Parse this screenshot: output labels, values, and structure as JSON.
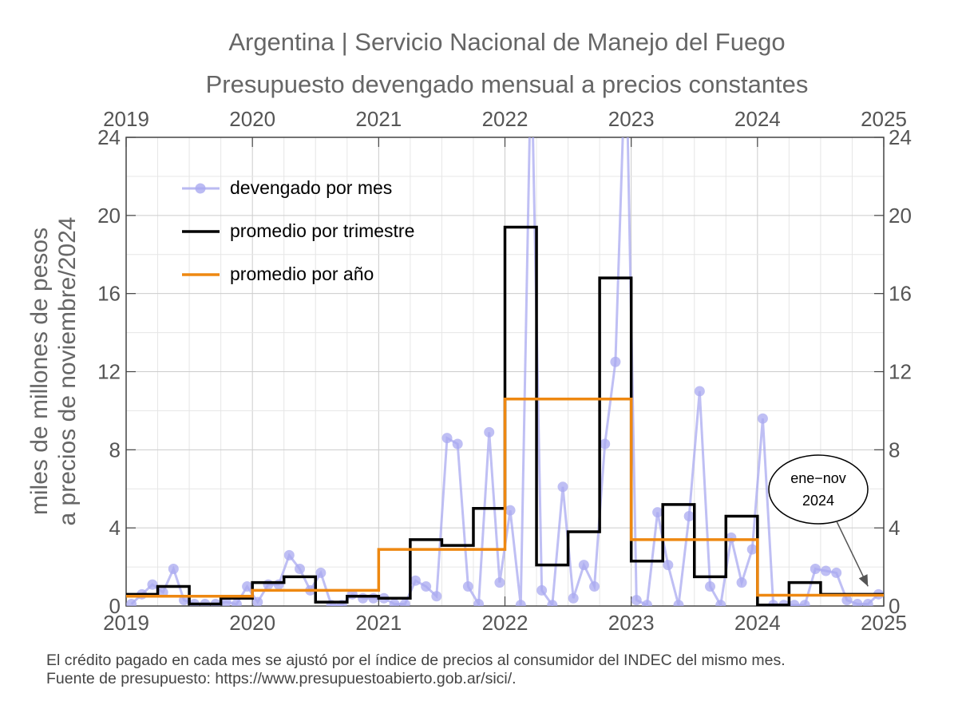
{
  "chart_data": {
    "type": "line",
    "title": "Argentina | Servicio Nacional de Manejo del Fuego",
    "subtitle": "Presupuesto devengado mensual a precios constantes",
    "ylabel_line1": "miles de millones de pesos",
    "ylabel_line2": "a precios de noviembre/2024",
    "xlim": [
      2019,
      2025
    ],
    "ylim": [
      0,
      24
    ],
    "x_ticks": [
      "2019",
      "2020",
      "2021",
      "2022",
      "2023",
      "2024",
      "2025"
    ],
    "y_ticks": [
      "0",
      "4",
      "8",
      "12",
      "16",
      "20",
      "24"
    ],
    "grid": true,
    "legend_position": "top-left",
    "legend": [
      {
        "label": "devengado por mes",
        "color": "#aaaaf0"
      },
      {
        "label": "promedio por trimestre",
        "color": "#000000"
      },
      {
        "label": "promedio por año",
        "color": "#ee8811"
      }
    ],
    "annotation": {
      "line1": "ene−nov",
      "line2": "2024"
    },
    "series": [
      {
        "name": "devengado por mes",
        "color": "#aaaaf0",
        "start_year": 2019,
        "values": [
          0.1,
          0.6,
          1.1,
          0.7,
          1.9,
          0.3,
          0.1,
          0.1,
          0.1,
          0.2,
          0.1,
          1.0,
          0.2,
          1.1,
          1.1,
          2.6,
          1.9,
          0.8,
          1.7,
          0.05,
          0.05,
          0.6,
          0.4,
          0.4,
          0.4,
          0.1,
          0.1,
          1.3,
          1.0,
          0.5,
          8.6,
          8.3,
          1.0,
          0.1,
          8.9,
          1.2,
          4.9,
          0.05,
          28.5,
          0.8,
          0.05,
          6.1,
          0.4,
          2.1,
          1.0,
          8.3,
          12.5,
          29.0,
          0.3,
          0.05,
          4.8,
          2.1,
          0.05,
          4.6,
          11.0,
          1.0,
          0.05,
          3.5,
          1.2,
          2.9,
          9.6,
          0.05,
          0.05,
          0.05,
          0.05,
          1.9,
          1.8,
          1.7,
          0.3,
          0.1,
          0.1,
          0.6
        ]
      },
      {
        "name": "promedio por trimestre",
        "color": "#000000",
        "start_year": 2019,
        "values": [
          0.6,
          1.0,
          0.1,
          0.4,
          1.2,
          1.5,
          0.2,
          0.5,
          0.4,
          3.4,
          3.1,
          5.0,
          19.4,
          2.1,
          3.8,
          16.8,
          2.3,
          5.2,
          1.5,
          4.6,
          0.05,
          1.2,
          0.6,
          0.6
        ]
      },
      {
        "name": "promedio por año",
        "color": "#ee8811",
        "start_year": 2019,
        "values": [
          0.5,
          0.8,
          2.9,
          10.6,
          3.4,
          0.55
        ]
      }
    ]
  },
  "footnote": {
    "line1": "El crédito pagado en cada mes se ajustó por el índice de precios al consumidor del INDEC del mismo mes.",
    "line2": "Fuente de presupuesto: https://www.presupuestoabierto.gob.ar/sici/."
  }
}
